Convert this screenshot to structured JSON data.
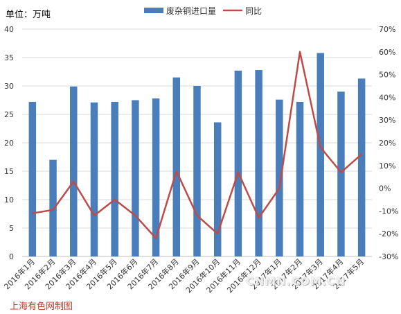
{
  "unit_label": "单位：万吨",
  "source_label": "上海有色网制图",
  "watermark": "CNMN.COM.CN",
  "colors": {
    "bar": "#4a7ebb",
    "line": "#be4b48",
    "source": "#c0392b",
    "grid": "#d9d9d9"
  },
  "chart_data": {
    "type": "bar",
    "categories": [
      "2016年1月",
      "2016年2月",
      "2016年3月",
      "2016年4月",
      "2016年5月",
      "2016年6月",
      "2016年7月",
      "2016年8月",
      "2016年9月",
      "2016年10月",
      "2016年11月",
      "2016年12月",
      "2017年1月",
      "2017年2月",
      "2017年3月",
      "2017年4月",
      "2017年5月"
    ],
    "series": [
      {
        "name": "废杂铜进口量",
        "type": "bar",
        "axis": "left",
        "values": [
          27.2,
          17.0,
          29.9,
          27.1,
          27.2,
          27.5,
          27.8,
          31.5,
          30.0,
          23.6,
          32.7,
          32.8,
          27.6,
          27.2,
          35.8,
          29.0,
          31.3
        ]
      },
      {
        "name": "同比",
        "type": "line",
        "axis": "right",
        "values": [
          -11,
          -9.5,
          3,
          -12,
          -5,
          -12,
          -22,
          7.5,
          -12,
          -20,
          7,
          -13,
          0,
          60,
          18,
          7,
          15
        ]
      }
    ],
    "y_left": {
      "min": 0,
      "max": 40,
      "step": 5,
      "tick_labels": [
        "0",
        "5",
        "10",
        "15",
        "20",
        "25",
        "30",
        "35",
        "40"
      ]
    },
    "y_right": {
      "min": -30,
      "max": 70,
      "step": 10,
      "tick_labels": [
        "-30%",
        "-20%",
        "-10%",
        "0%",
        "10%",
        "20%",
        "30%",
        "40%",
        "50%",
        "60%",
        "70%"
      ]
    },
    "grid": true,
    "legend_position": "top"
  }
}
